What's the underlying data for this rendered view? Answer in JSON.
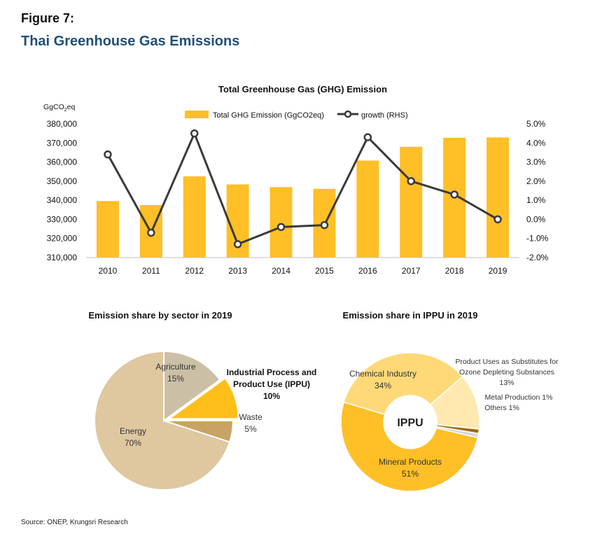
{
  "figure_label": "Figure 7:",
  "figure_title": "Thai Greenhouse Gas Emissions",
  "source": "Source: ONEP, Krungsri Research",
  "colors": {
    "bar": "#FFBF27",
    "line": "#3a3a3a",
    "title": "#1f4e79",
    "energy": "#DFC7A0",
    "agriculture": "#CBC0A6",
    "ippu": "#FFBF1A",
    "waste": "#C9A365",
    "mineral": "#FFBF27",
    "chemical": "#FFD978",
    "ods": "#FFE9AE",
    "metal": "#9B6B12",
    "others": "#D9D9D9"
  },
  "chart_data": [
    {
      "type": "bar",
      "title": "Total Greenhouse Gas (GHG) Emission",
      "ylabel": "GgCO",
      "ylabel_sub": "2",
      "ylabel_tail": "eq",
      "categories": [
        "2010",
        "2011",
        "2012",
        "2013",
        "2014",
        "2015",
        "2016",
        "2017",
        "2018",
        "2019"
      ],
      "ylim": [
        310000,
        380000
      ],
      "y2lim": [
        -2.0,
        5.0
      ],
      "yticks": [
        "310,000",
        "320,000",
        "330,000",
        "340,000",
        "350,000",
        "360,000",
        "370,000",
        "380,000"
      ],
      "y2ticks": [
        "-2.0%",
        "-1.0%",
        "0.0%",
        "1.0%",
        "2.0%",
        "3.0%",
        "4.0%",
        "5.0%"
      ],
      "series": [
        {
          "name": "Total GHG Emission (GgCO2eq)",
          "kind": "bar",
          "values": [
            339600,
            337500,
            352500,
            348300,
            346900,
            346000,
            360800,
            368000,
            372700,
            372900
          ]
        },
        {
          "name": "growth (RHS)",
          "kind": "line",
          "axis": "right",
          "values": [
            3.4,
            -0.7,
            4.5,
            -1.3,
            -0.4,
            -0.3,
            4.3,
            2.0,
            1.3,
            0.0
          ]
        }
      ],
      "legend": "top-center"
    },
    {
      "type": "pie",
      "title": "Emission share by sector in 2019",
      "slices": [
        {
          "label": "Energy",
          "pct_label": "70%",
          "value": 70,
          "color_key": "energy"
        },
        {
          "label": "Agriculture",
          "pct_label": "15%",
          "value": 15,
          "color_key": "agriculture"
        },
        {
          "label": "Industrial Process and",
          "label2": "Product Use (IPPU)",
          "pct_label": "10%",
          "value": 10,
          "color_key": "ippu",
          "exploded": true
        },
        {
          "label": "Waste",
          "pct_label": "5%",
          "value": 5,
          "color_key": "waste"
        }
      ]
    },
    {
      "type": "pie",
      "title": "Emission share in IPPU in 2019",
      "center_label": "IPPU",
      "slices": [
        {
          "label": "Mineral Products",
          "pct_label": "51%",
          "value": 51,
          "color_key": "mineral"
        },
        {
          "label": "Chemical Industry",
          "pct_label": "34%",
          "value": 34,
          "color_key": "chemical"
        },
        {
          "label": "Product Uses as Substitutes for",
          "label2": "Ozone Depleting Substances",
          "pct_label": "13%",
          "value": 13,
          "color_key": "ods"
        },
        {
          "label": "Metal Production 1%",
          "value": 1,
          "color_key": "metal"
        },
        {
          "label": "Others 1%",
          "value": 1,
          "color_key": "others"
        }
      ]
    }
  ]
}
